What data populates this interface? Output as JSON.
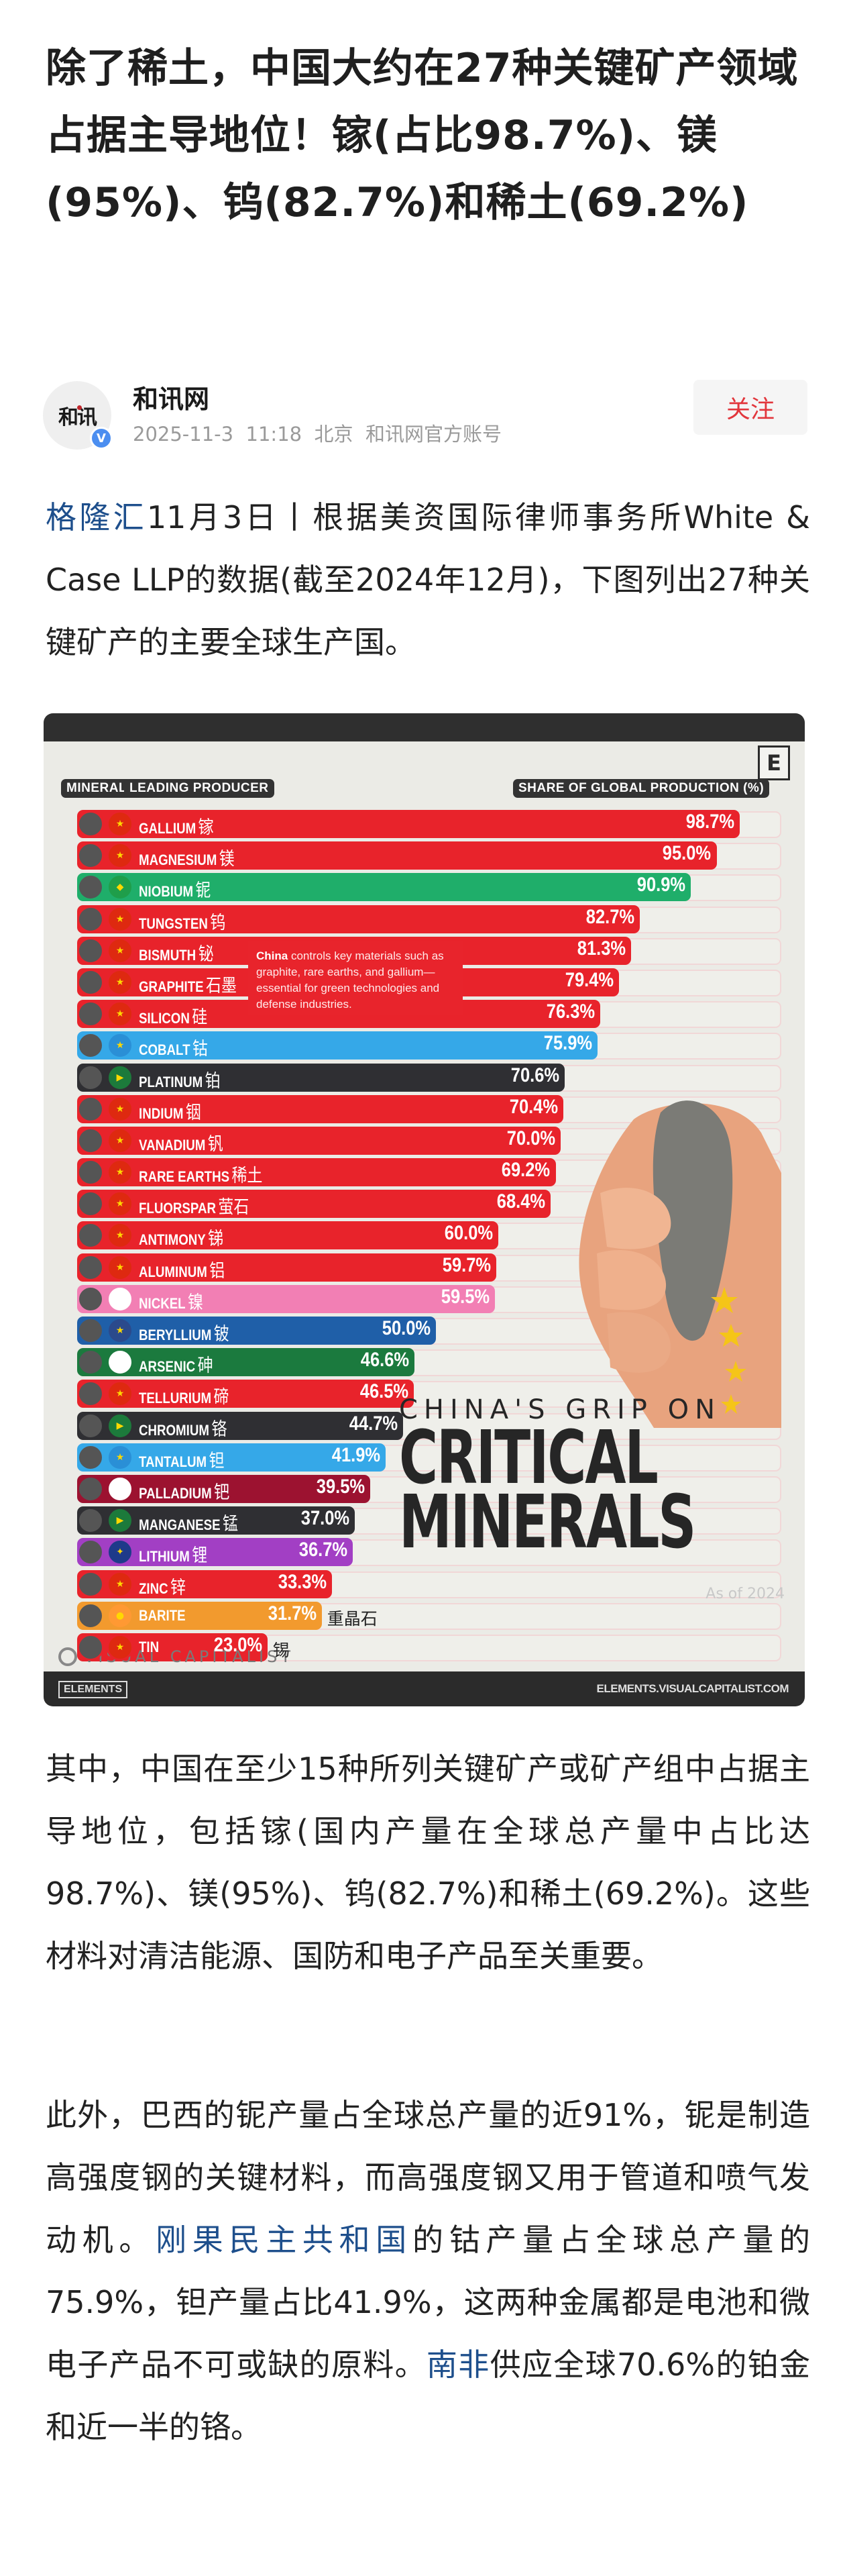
{
  "article": {
    "title": "除了稀土，中国大约在27种关键矿产领域占据主导地位！镓(占比98.7%)、镁(95%)、钨(82.7%)和稀土(69.2%)",
    "author": {
      "avatar_text": "和讯",
      "verified_badge": "V",
      "name": "和讯网",
      "meta": "2025-11-3  11:18  北京  和讯网官方账号",
      "follow_label": "关注"
    },
    "para1": {
      "link": "格隆汇",
      "text": "11月3日丨根据美资国际律师事务所White & Case LLP的数据(截至2024年12月)，下图列出27种关键矿产的主要全球生产国。"
    },
    "para2": {
      "text": "其中，中国在至少15种所列关键矿产或矿产组中占据主导地位，包括镓(国内产量在全球总产量中占比达98.7%)、镁(95%)、钨(82.7%)和稀土(69.2%)。这些材料对清洁能源、国防和电子产品至关重要。"
    },
    "para3": {
      "text_a": "此外，巴西的铌产量占全球总产量的近91%，铌是制造高强度钢的关键材料，而高强度钢又用于管道和喷气发动机。",
      "link_a": "刚果民主共和国",
      "text_b": "的钴产量占全球总产量的75.9%，钽产量占比41.9%，这两种金属都是电池和微电子产品不可或缺的原料。",
      "link_b": "南非",
      "text_c": "供应全球70.6%的铂金和近一半的铬。"
    }
  },
  "infographic": {
    "logo_letter": "E",
    "tag_mineral": "MINERAL",
    "tag_producer": "LEADING PRODUCER",
    "tag_share": "SHARE OF GLOBAL PRODUCTION (%)",
    "callout_bold": "China",
    "callout_text": " controls key materials such as graphite, rare earths, and gallium—essential for green technologies and defense industries.",
    "headline_sub": "CHINA'S GRIP ON",
    "headline_line1": "CRITICAL",
    "headline_line2": "MINERALS",
    "brand": "VISUAL CAPITALIST",
    "as_of": "As of 2024",
    "footer_left": "ELEMENTS",
    "footer_right": "ELEMENTS.VISUALCAPITALIST.COM"
  },
  "chart_data": {
    "type": "bar",
    "orientation": "horizontal",
    "title": "CHINA'S GRIP ON CRITICAL MINERALS",
    "xlabel": "SHARE OF GLOBAL PRODUCTION (%)",
    "ylabel": "MINERAL / LEADING PRODUCER",
    "xlim": [
      0,
      100
    ],
    "note": "As of 2024",
    "categories": [
      "GALLIUM 镓",
      "MAGNESIUM 镁",
      "NIOBIUM 铌",
      "TUNGSTEN 钨",
      "BISMUTH 铋",
      "GRAPHITE 石墨",
      "SILICON 硅",
      "COBALT 钴",
      "PLATINUM 铂",
      "INDIUM 铟",
      "VANADIUM 钒",
      "RARE EARTHS 稀土",
      "FLUORSPAR 萤石",
      "ANTIMONY 锑",
      "ALUMINUM 铝",
      "NICKEL 镍",
      "BERYLLIUM 铍",
      "ARSENIC 砷",
      "TELLURIUM 碲",
      "CHROMIUM 铬",
      "TANTALUM 钽",
      "PALLADIUM 钯",
      "MANGANESE 锰",
      "LITHIUM 锂",
      "ZINC 锌",
      "BARITE 重晶石",
      "TIN 锡"
    ],
    "values": [
      98.7,
      95.0,
      90.9,
      82.7,
      81.3,
      79.4,
      76.3,
      75.9,
      70.6,
      70.4,
      70.0,
      69.2,
      68.4,
      60.0,
      59.7,
      59.5,
      50.0,
      46.6,
      46.5,
      44.7,
      41.9,
      39.5,
      37.0,
      36.7,
      33.3,
      31.7,
      23.0
    ],
    "producers": [
      "China",
      "China",
      "Brazil",
      "China",
      "China",
      "China",
      "China",
      "DR Congo",
      "South Africa",
      "China",
      "China",
      "China",
      "China",
      "China",
      "China",
      "Indonesia",
      "USA",
      "Peru",
      "China",
      "South Africa",
      "DR Congo",
      "Russia",
      "South Africa",
      "Australia",
      "China",
      "India",
      "China"
    ],
    "rows": [
      {
        "en": "GALLIUM",
        "zh": "镓",
        "value": "98.7%",
        "color": "#e8232b",
        "flag": "cn"
      },
      {
        "en": "MAGNESIUM",
        "zh": "镁",
        "value": "95.0%",
        "color": "#e8232b",
        "flag": "cn"
      },
      {
        "en": "NIOBIUM",
        "zh": "铌",
        "value": "90.9%",
        "color": "#1fae6a",
        "flag": "br"
      },
      {
        "en": "TUNGSTEN",
        "zh": "钨",
        "value": "82.7%",
        "color": "#e8232b",
        "flag": "cn"
      },
      {
        "en": "BISMUTH",
        "zh": "铋",
        "value": "81.3%",
        "color": "#e8232b",
        "flag": "cn"
      },
      {
        "en": "GRAPHITE",
        "zh": "石墨",
        "value": "79.4%",
        "color": "#e8232b",
        "flag": "cn"
      },
      {
        "en": "SILICON",
        "zh": "硅",
        "value": "76.3%",
        "color": "#e8232b",
        "flag": "cn"
      },
      {
        "en": "COBALT",
        "zh": "钴",
        "value": "75.9%",
        "color": "#35a8e8",
        "flag": "cd"
      },
      {
        "en": "PLATINUM",
        "zh": "铂",
        "value": "70.6%",
        "color": "#2f2f33",
        "flag": "za"
      },
      {
        "en": "INDIUM",
        "zh": "铟",
        "value": "70.4%",
        "color": "#e8232b",
        "flag": "cn"
      },
      {
        "en": "VANADIUM",
        "zh": "钒",
        "value": "70.0%",
        "color": "#e8232b",
        "flag": "cn"
      },
      {
        "en": "RARE EARTHS",
        "zh": "稀土",
        "value": "69.2%",
        "color": "#e8232b",
        "flag": "cn"
      },
      {
        "en": "FLUORSPAR",
        "zh": "萤石",
        "value": "68.4%",
        "color": "#e8232b",
        "flag": "cn"
      },
      {
        "en": "ANTIMONY",
        "zh": "锑",
        "value": "60.0%",
        "color": "#e8232b",
        "flag": "cn"
      },
      {
        "en": "ALUMINUM",
        "zh": "铝",
        "value": "59.7%",
        "color": "#e8232b",
        "flag": "cn"
      },
      {
        "en": "NICKEL",
        "zh": "镍",
        "value": "59.5%",
        "color": "#f27fb4",
        "flag": "id"
      },
      {
        "en": "BERYLLIUM",
        "zh": "铍",
        "value": "50.0%",
        "color": "#1f5fa8",
        "flag": "us"
      },
      {
        "en": "ARSENIC",
        "zh": "砷",
        "value": "46.6%",
        "color": "#1b7a3e",
        "flag": "pe"
      },
      {
        "en": "TELLURIUM",
        "zh": "碲",
        "value": "46.5%",
        "color": "#e8232b",
        "flag": "cn"
      },
      {
        "en": "CHROMIUM",
        "zh": "铬",
        "value": "44.7%",
        "color": "#2f2f33",
        "flag": "za"
      },
      {
        "en": "TANTALUM",
        "zh": "钽",
        "value": "41.9%",
        "color": "#35a8e8",
        "flag": "cd"
      },
      {
        "en": "PALLADIUM",
        "zh": "钯",
        "value": "39.5%",
        "color": "#9c1230",
        "flag": "ru"
      },
      {
        "en": "MANGANESE",
        "zh": "锰",
        "value": "37.0%",
        "color": "#2f2f33",
        "flag": "za"
      },
      {
        "en": "LITHIUM",
        "zh": "锂",
        "value": "36.7%",
        "color": "#a23fc4",
        "flag": "au"
      },
      {
        "en": "ZINC",
        "zh": "锌",
        "value": "33.3%",
        "color": "#e8232b",
        "flag": "cn"
      },
      {
        "en": "BARITE",
        "zh": "",
        "value": "31.7%",
        "color": "#f29a2e",
        "flag": "in",
        "extra": "重晶石"
      },
      {
        "en": "TIN",
        "zh": "",
        "value": "23.0%",
        "color": "#e8232b",
        "flag": "cn",
        "extra": "锡"
      }
    ]
  }
}
